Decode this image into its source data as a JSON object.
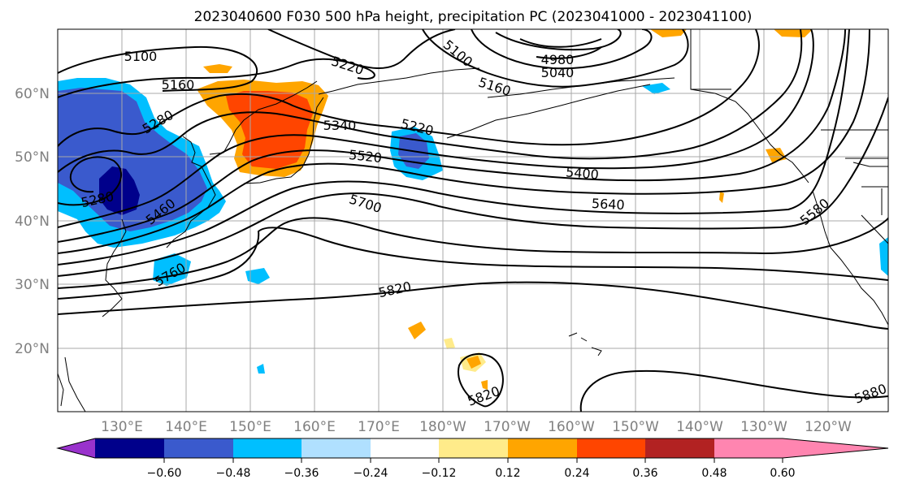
{
  "title": "2023040600 F030 500 hPa height, precipitation PC (2023041000 - 2023041100)",
  "lat_labels": [
    "60°N",
    "50°N",
    "40°N",
    "30°N",
    "20°N"
  ],
  "lon_labels": [
    "130°E",
    "140°E",
    "150°E",
    "160°E",
    "170°E",
    "180°W",
    "170°W",
    "160°W",
    "150°W",
    "140°W",
    "130°W",
    "120°W"
  ],
  "contour_labels": [
    "5100",
    "5160",
    "5220",
    "5100",
    "4980",
    "5040",
    "5160",
    "5280",
    "5340",
    "5220",
    "5520",
    "5400",
    "5280",
    "5460",
    "5700",
    "5640",
    "5580",
    "5760",
    "5820",
    "5820",
    "5880"
  ],
  "colorbar": {
    "ticks": [
      "−0.60",
      "−0.48",
      "−0.36",
      "−0.24",
      "−0.12",
      "0.12",
      "0.24",
      "0.36",
      "0.48",
      "0.60"
    ],
    "colors": [
      "#9932cc",
      "#00008b",
      "#3a5acd",
      "#00bfff",
      "#b0e0ff",
      "#ffffff",
      "#ffeb8a",
      "#ffa500",
      "#ff4500",
      "#b22222",
      "#ff85b0"
    ]
  }
}
